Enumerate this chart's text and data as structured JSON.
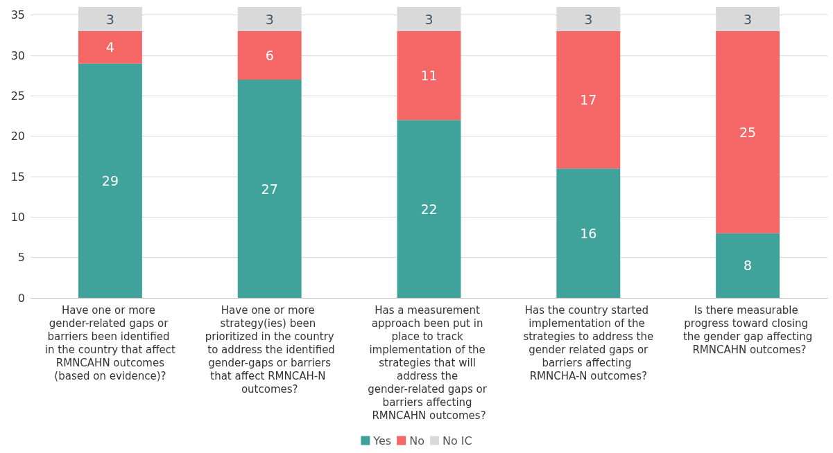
{
  "chart_data": {
    "type": "bar",
    "stacked": true,
    "categories": [
      "Have one or more gender-related gaps or barriers been identified in the country that affect RMNCAHN outcomes (based on evidence)?",
      "Have one or more strategy(ies) been prioritized in the country to address the identified gender-gaps or barriers that affect RMNCAH-N outcomes?",
      "Has a measurement approach been put in place to track implementation of the strategies that will address the gender-related gaps or barriers affecting RMNCAHN outcomes?",
      "Has the country started implementation of the strategies to address the gender related gaps or barriers affecting RMNCHA-N outcomes?",
      "Is there measurable progress toward closing the gender gap affecting RMNCAHN outcomes?"
    ],
    "series": [
      {
        "name": "Yes",
        "color": "#3fa39b",
        "values": [
          29,
          27,
          22,
          16,
          8
        ]
      },
      {
        "name": "No",
        "color": "#f46766",
        "values": [
          4,
          6,
          11,
          17,
          25
        ]
      },
      {
        "name": "No IC",
        "color": "#d9d9d9",
        "values": [
          3,
          3,
          3,
          3,
          3
        ]
      }
    ],
    "ylim": [
      0,
      36
    ],
    "yticks": [
      0,
      5,
      10,
      15,
      20,
      25,
      30,
      35
    ],
    "grid": "y",
    "legend": "bottom",
    "data_labels": true
  }
}
